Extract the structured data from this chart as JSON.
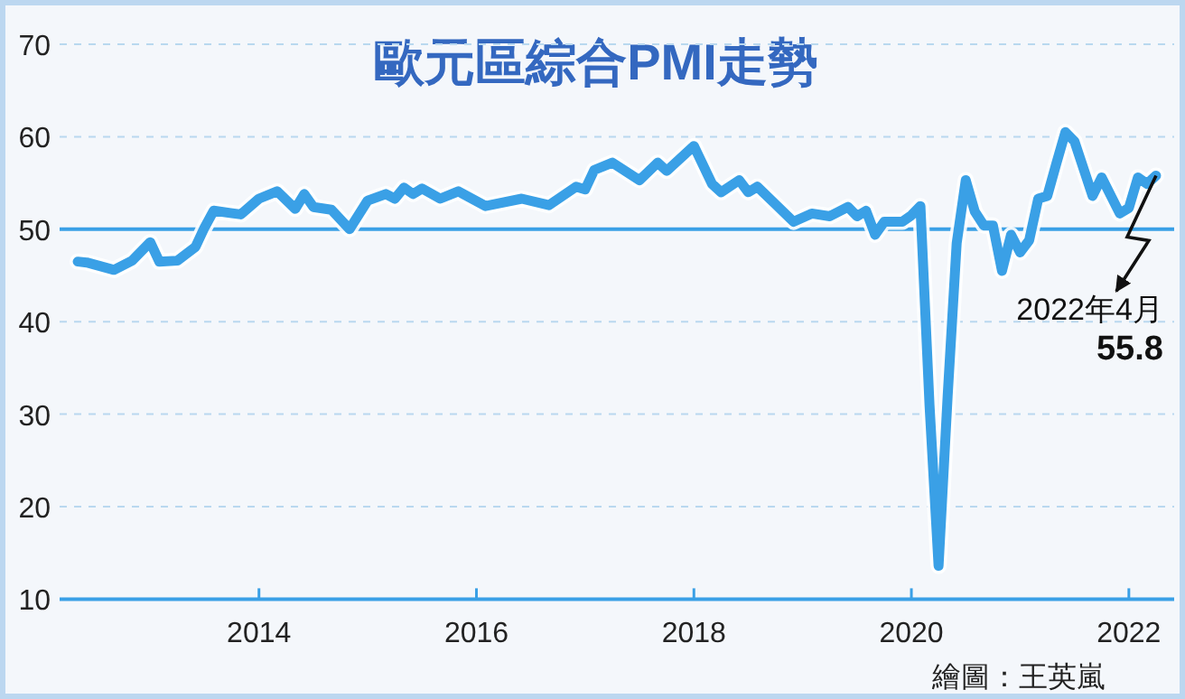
{
  "chart_data": {
    "type": "line",
    "title": "歐元區綜合PMI走勢",
    "x": [
      "2012-05",
      "2012-06",
      "2012-09",
      "2012-11",
      "2013-01",
      "2013-02",
      "2013-04",
      "2013-06",
      "2013-07",
      "2013-08",
      "2013-11",
      "2014-01",
      "2014-03",
      "2014-05",
      "2014-06",
      "2014-07",
      "2014-09",
      "2014-11",
      "2015-01",
      "2015-03",
      "2015-04",
      "2015-05",
      "2015-06",
      "2015-07",
      "2015-09",
      "2015-11",
      "2016-02",
      "2016-06",
      "2016-09",
      "2016-12",
      "2017-01",
      "2017-02",
      "2017-04",
      "2017-07",
      "2017-09",
      "2017-10",
      "2018-01",
      "2018-03",
      "2018-04",
      "2018-06",
      "2018-07",
      "2018-08",
      "2018-10",
      "2018-12",
      "2019-02",
      "2019-04",
      "2019-06",
      "2019-07",
      "2019-08",
      "2019-09",
      "2019-10",
      "2019-12",
      "2020-01",
      "2020-02",
      "2020-03",
      "2020-04",
      "2020-05",
      "2020-06",
      "2020-07",
      "2020-08",
      "2020-09",
      "2020-10",
      "2020-11",
      "2020-12",
      "2021-01",
      "2021-02",
      "2021-03",
      "2021-04",
      "2021-05",
      "2021-06",
      "2021-07",
      "2021-09",
      "2021-10",
      "2021-12",
      "2022-01",
      "2022-02",
      "2022-03",
      "2022-04"
    ],
    "series": [
      {
        "color": "#3aa0e6",
        "values": [
          46.5,
          46.4,
          45.6,
          46.6,
          48.6,
          46.5,
          46.6,
          48.1,
          50.2,
          52.0,
          51.6,
          53.3,
          54.1,
          52.2,
          53.8,
          52.4,
          52.1,
          50.0,
          53.1,
          53.8,
          53.3,
          54.5,
          53.8,
          54.4,
          53.3,
          54.1,
          52.5,
          53.3,
          52.6,
          54.6,
          54.3,
          56.4,
          57.2,
          55.3,
          57.2,
          56.3,
          59.0,
          54.9,
          54.0,
          55.3,
          54.0,
          54.6,
          52.7,
          50.8,
          51.7,
          51.4,
          52.4,
          51.4,
          52.0,
          49.4,
          50.8,
          50.8,
          51.5,
          52.5,
          31.0,
          13.6,
          31.9,
          48.5,
          55.3,
          51.9,
          50.4,
          50.4,
          45.5,
          49.4,
          47.5,
          48.8,
          53.3,
          53.6,
          57.1,
          60.5,
          59.5,
          53.6,
          55.6,
          51.7,
          52.3,
          55.6,
          54.9,
          55.8
        ]
      }
    ],
    "xlim": [
      "2012-03",
      "2022-06"
    ],
    "xticks": [
      "2014",
      "2016",
      "2018",
      "2020",
      "2022"
    ],
    "ylim": [
      10,
      70
    ],
    "yticks": [
      10,
      20,
      30,
      40,
      50,
      60,
      70
    ],
    "grid": "y",
    "line_style": "solid",
    "marker": "none",
    "ref_lines": [
      {
        "axis": "y",
        "value": 50,
        "color": "#3aa0e6",
        "line_style": "solid"
      }
    ],
    "annotations": [
      {
        "text": "2022年4月",
        "x": "2022-04",
        "y": 55.8
      },
      "55.8",
      "繪圖：王英嵐"
    ]
  }
}
